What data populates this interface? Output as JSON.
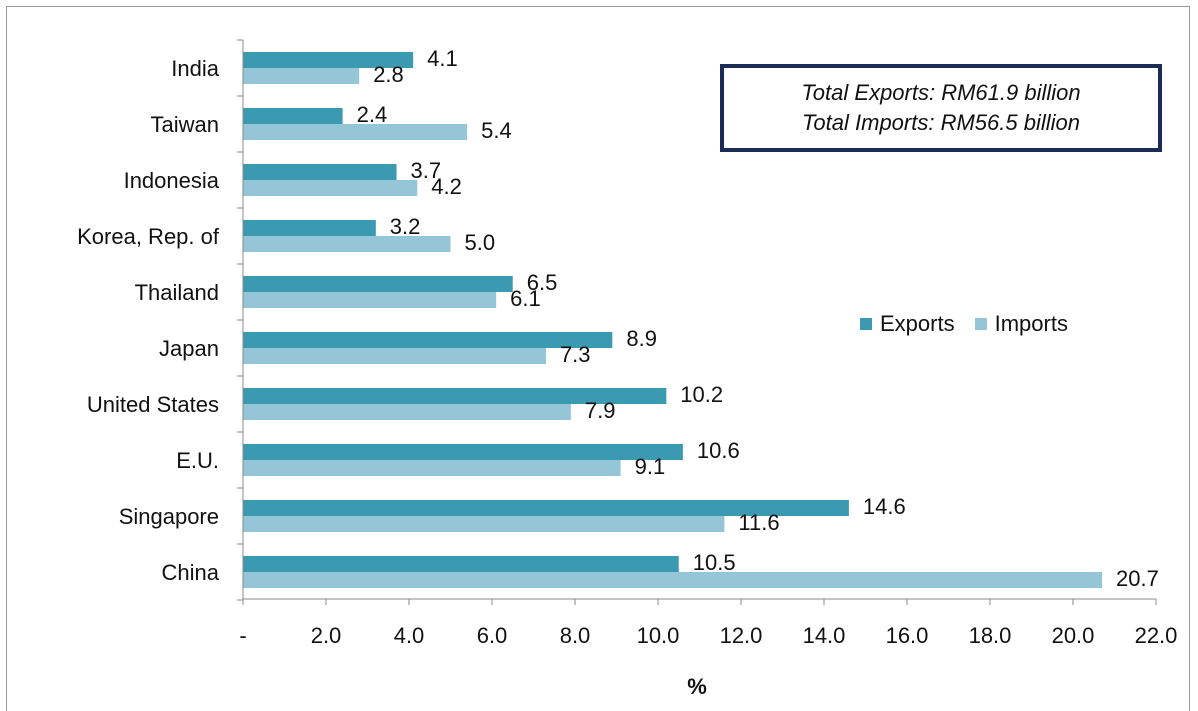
{
  "chart_data": {
    "type": "bar",
    "orientation": "horizontal",
    "categories": [
      "India",
      "Taiwan",
      "Indonesia",
      "Korea, Rep. of",
      "Thailand",
      "Japan",
      "United States",
      "E.U.",
      "Singapore",
      "China"
    ],
    "series": [
      {
        "name": "Exports",
        "color": "#3b9ab2",
        "values": [
          4.1,
          2.4,
          3.7,
          3.2,
          6.5,
          8.9,
          10.2,
          10.6,
          14.6,
          10.5
        ],
        "labels": [
          "4.1",
          "2.4",
          "3.7",
          "3.2",
          "6.5",
          "8.9",
          "10.2",
          "10.6",
          "14.6",
          "10.5"
        ]
      },
      {
        "name": "Imports",
        "color": "#94c6d8",
        "values": [
          2.8,
          5.4,
          4.2,
          5.0,
          6.1,
          7.3,
          7.9,
          9.1,
          11.6,
          20.7
        ],
        "labels": [
          "2.8",
          "5.4",
          "4.2",
          "5.0",
          "6.1",
          "7.3",
          "7.9",
          "9.1",
          "11.6",
          "20.7"
        ]
      }
    ],
    "xlim": [
      0,
      22
    ],
    "xticks": [
      0,
      2,
      4,
      6,
      8,
      10,
      12,
      14,
      16,
      18,
      20,
      22
    ],
    "xtick_labels": [
      "-",
      "2.0",
      "4.0",
      "6.0",
      "8.0",
      "10.0",
      "12.0",
      "14.0",
      "16.0",
      "18.0",
      "20.0",
      "22.0"
    ],
    "xlabel": "%",
    "legend_position": "right",
    "grid": false
  },
  "annotation": {
    "line1": "Total Exports: RM61.9 billion",
    "line2": "Total Imports: RM56.5 billion"
  }
}
